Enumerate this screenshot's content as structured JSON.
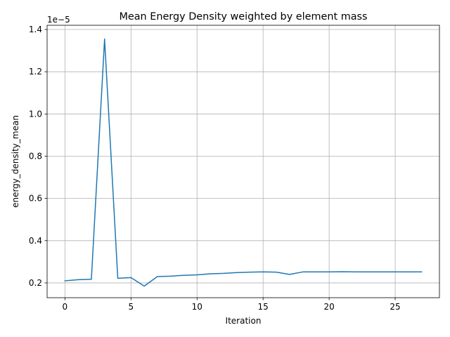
{
  "chart_data": {
    "type": "line",
    "title": "Mean Energy Density weighted by element mass",
    "xlabel": "Iteration",
    "ylabel": "energy_density_mean",
    "y_offset_text": "1e−5",
    "xlim": [
      -1.35,
      28.35
    ],
    "ylim": [
      0.13,
      1.42
    ],
    "x_ticks": [
      0,
      5,
      10,
      15,
      20,
      25
    ],
    "x_tick_labels": [
      "0",
      "5",
      "10",
      "15",
      "20",
      "25"
    ],
    "y_ticks": [
      0.2,
      0.4,
      0.6,
      0.8,
      1.0,
      1.2,
      1.4
    ],
    "y_tick_labels": [
      "0.2",
      "0.4",
      "0.6",
      "0.8",
      "1.0",
      "1.2",
      "1.4"
    ],
    "grid": true,
    "series": [
      {
        "color": "#1f77b4",
        "x": [
          0,
          1,
          2,
          3,
          4,
          5,
          6,
          7,
          8,
          9,
          10,
          11,
          12,
          13,
          14,
          15,
          16,
          17,
          18,
          19,
          20,
          21,
          22,
          23,
          24,
          25,
          26,
          27
        ],
        "y": [
          0.21,
          0.215,
          0.217,
          1.355,
          0.222,
          0.225,
          0.185,
          0.23,
          0.232,
          0.236,
          0.238,
          0.243,
          0.245,
          0.249,
          0.251,
          0.252,
          0.251,
          0.24,
          0.252,
          0.252,
          0.252,
          0.253,
          0.252,
          0.252,
          0.252,
          0.252,
          0.252,
          0.252
        ]
      }
    ]
  }
}
